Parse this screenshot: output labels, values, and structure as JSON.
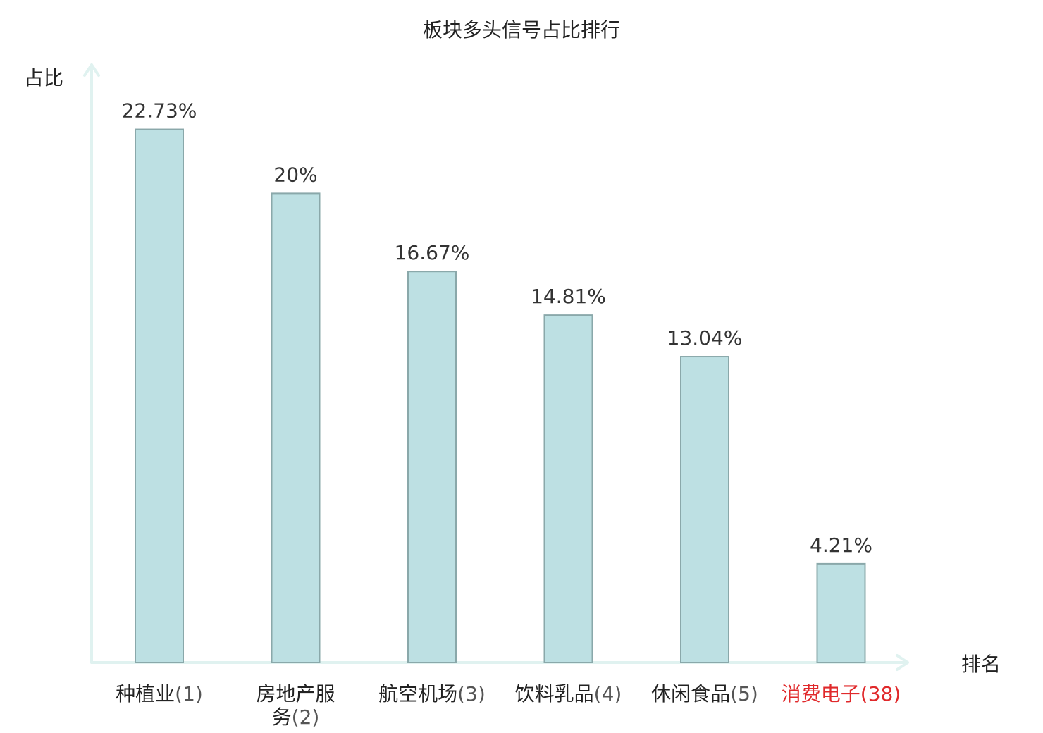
{
  "chart_data": {
    "type": "bar",
    "title": "板块多头信号占比排行",
    "ylabel": "占比",
    "xlabel": "排名",
    "ylim": [
      0,
      25
    ],
    "grid": false,
    "categories": [
      "种植业",
      "房地产服务",
      "航空机场",
      "饮料乳品",
      "休闲食品",
      "消费电子"
    ],
    "category_lines": [
      [
        "种植业"
      ],
      [
        "房地产服",
        "务"
      ],
      [
        "航空机场"
      ],
      [
        "饮料乳品"
      ],
      [
        "休闲食品"
      ],
      [
        "消费电子"
      ]
    ],
    "ranks": [
      "(1)",
      "(2)",
      "(3)",
      "(4)",
      "(5)",
      "(38)"
    ],
    "values": [
      22.73,
      20,
      16.67,
      14.81,
      13.04,
      4.21
    ],
    "value_labels": [
      "22.73%",
      "20%",
      "16.67%",
      "14.81%",
      "13.04%",
      "4.21%"
    ],
    "highlight_index": 5
  },
  "colors": {
    "bar_fill": "#bde0e3",
    "bar_stroke": "#8aa8aa",
    "axis": "#e0f2f0",
    "highlight": "#e0292b"
  }
}
